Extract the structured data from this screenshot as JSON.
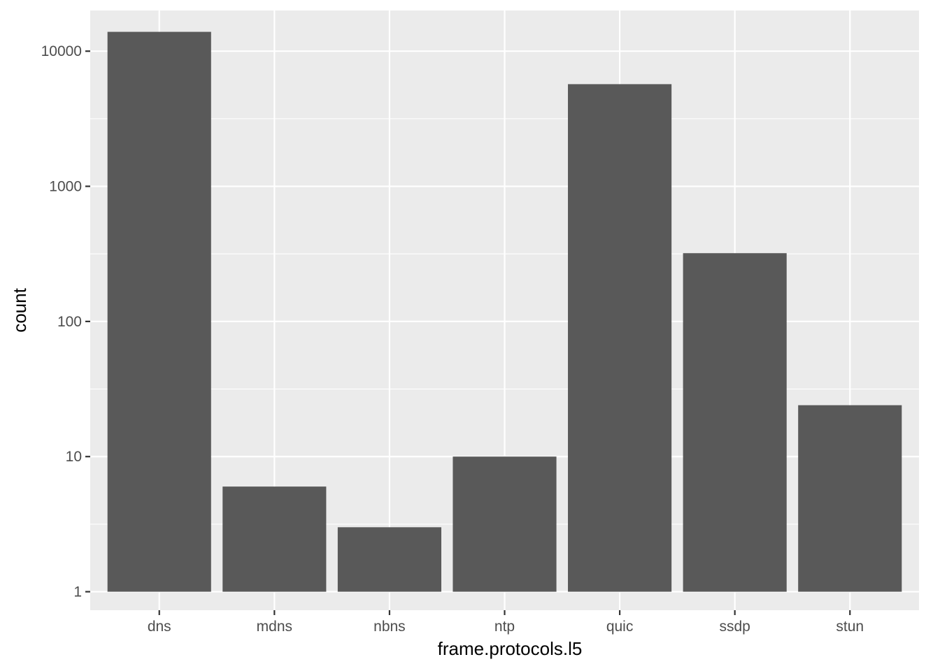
{
  "chart_data": {
    "type": "bar",
    "xlabel": "frame.protocols.l5",
    "ylabel": "count",
    "y_scale": "log10",
    "ylim": [
      0.73,
      20000
    ],
    "yticks": [
      1,
      10,
      100,
      1000,
      10000
    ],
    "ytick_labels": [
      "1",
      "10",
      "100",
      "1000",
      "10000"
    ],
    "categories": [
      "dns",
      "mdns",
      "nbns",
      "ntp",
      "quic",
      "ssdp",
      "stun"
    ],
    "values": [
      13900,
      6,
      3,
      10,
      5700,
      320,
      24
    ],
    "grid": true,
    "colors": {
      "panel": "#ebebeb",
      "grid": "#ffffff",
      "bar": "#595959",
      "tick": "#333333"
    }
  }
}
